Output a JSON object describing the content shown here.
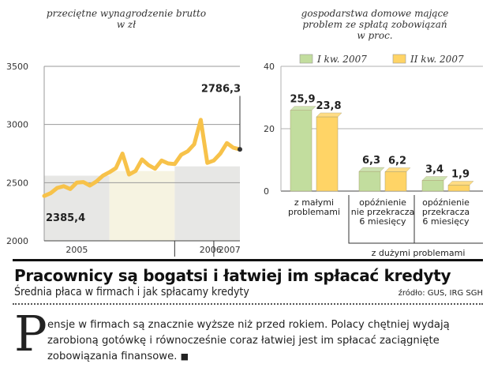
{
  "chart_data": [
    {
      "type": "line",
      "title": "przeciętne wynagrodzenie brutto\nw zł",
      "ylim": [
        2000,
        3500
      ],
      "yticks": [
        "3500",
        "3000",
        "2500",
        "2000"
      ],
      "year_labels": [
        "2005",
        "2006",
        "2007"
      ],
      "series": [
        {
          "name": "przeciętne wynagrodzenie brutto",
          "x": [
            0,
            1,
            2,
            3,
            4,
            5,
            6,
            7,
            8,
            9,
            10,
            11,
            12,
            13,
            14,
            15,
            16,
            17,
            18,
            19,
            20,
            21,
            22,
            23,
            24,
            25,
            26,
            27,
            28,
            29,
            30
          ],
          "values": [
            2385.4,
            2410,
            2455,
            2470,
            2445,
            2500,
            2505,
            2475,
            2510,
            2560,
            2590,
            2625,
            2750,
            2570,
            2600,
            2700,
            2650,
            2620,
            2690,
            2665,
            2660,
            2740,
            2770,
            2830,
            3040,
            2670,
            2690,
            2750,
            2840,
            2800,
            2786.3
          ]
        }
      ],
      "annotations": [
        "2385,4",
        "2786,3"
      ]
    },
    {
      "type": "bar",
      "title": "gospodarstwa domowe mające\nproblem ze spłatą zobowiązań\nw proc.",
      "ylim": [
        0,
        40
      ],
      "yticks": [
        "40",
        "20",
        "0"
      ],
      "categories": [
        "z małymi\nproblemami",
        "opóźnienie\nnie przekracza\n6 miesięcy",
        "opóźnienie\nprzekracza\n6 miesięcy"
      ],
      "group_label": "z dużymi problemami",
      "series": [
        {
          "name": "I kw. 2007",
          "values": [
            25.9,
            6.3,
            3.4
          ],
          "labels": [
            "25,9",
            "6,3",
            "3,4"
          ],
          "color": "#c2dd9e"
        },
        {
          "name": "II kw. 2007",
          "values": [
            23.8,
            6.2,
            1.9
          ],
          "labels": [
            "23,8",
            "6,2",
            "1,9"
          ],
          "color": "#ffd466"
        }
      ]
    }
  ],
  "article": {
    "headline": "Pracownicy są bogatsi i łatwiej im spłacać kredyty",
    "subheadline": "Średnia płaca w firmach i jak spłacamy kredyty",
    "source": "źródło: GUS, IRG SGH",
    "dropcap": "P",
    "lead": "ensje w firmach są znacznie wyższe niż przed rokiem. Polacy chętniej wydają zarobioną gotówkę i równocześnie coraz łatwiej jest im spłacać zaciągnięte zobowiązania finansowe.",
    "end_mark": "■"
  },
  "colors": {
    "line": "#f7c24a",
    "band_grey": "#e7e7e5",
    "band_cream": "#f6f3e1",
    "rule": "#000000"
  }
}
